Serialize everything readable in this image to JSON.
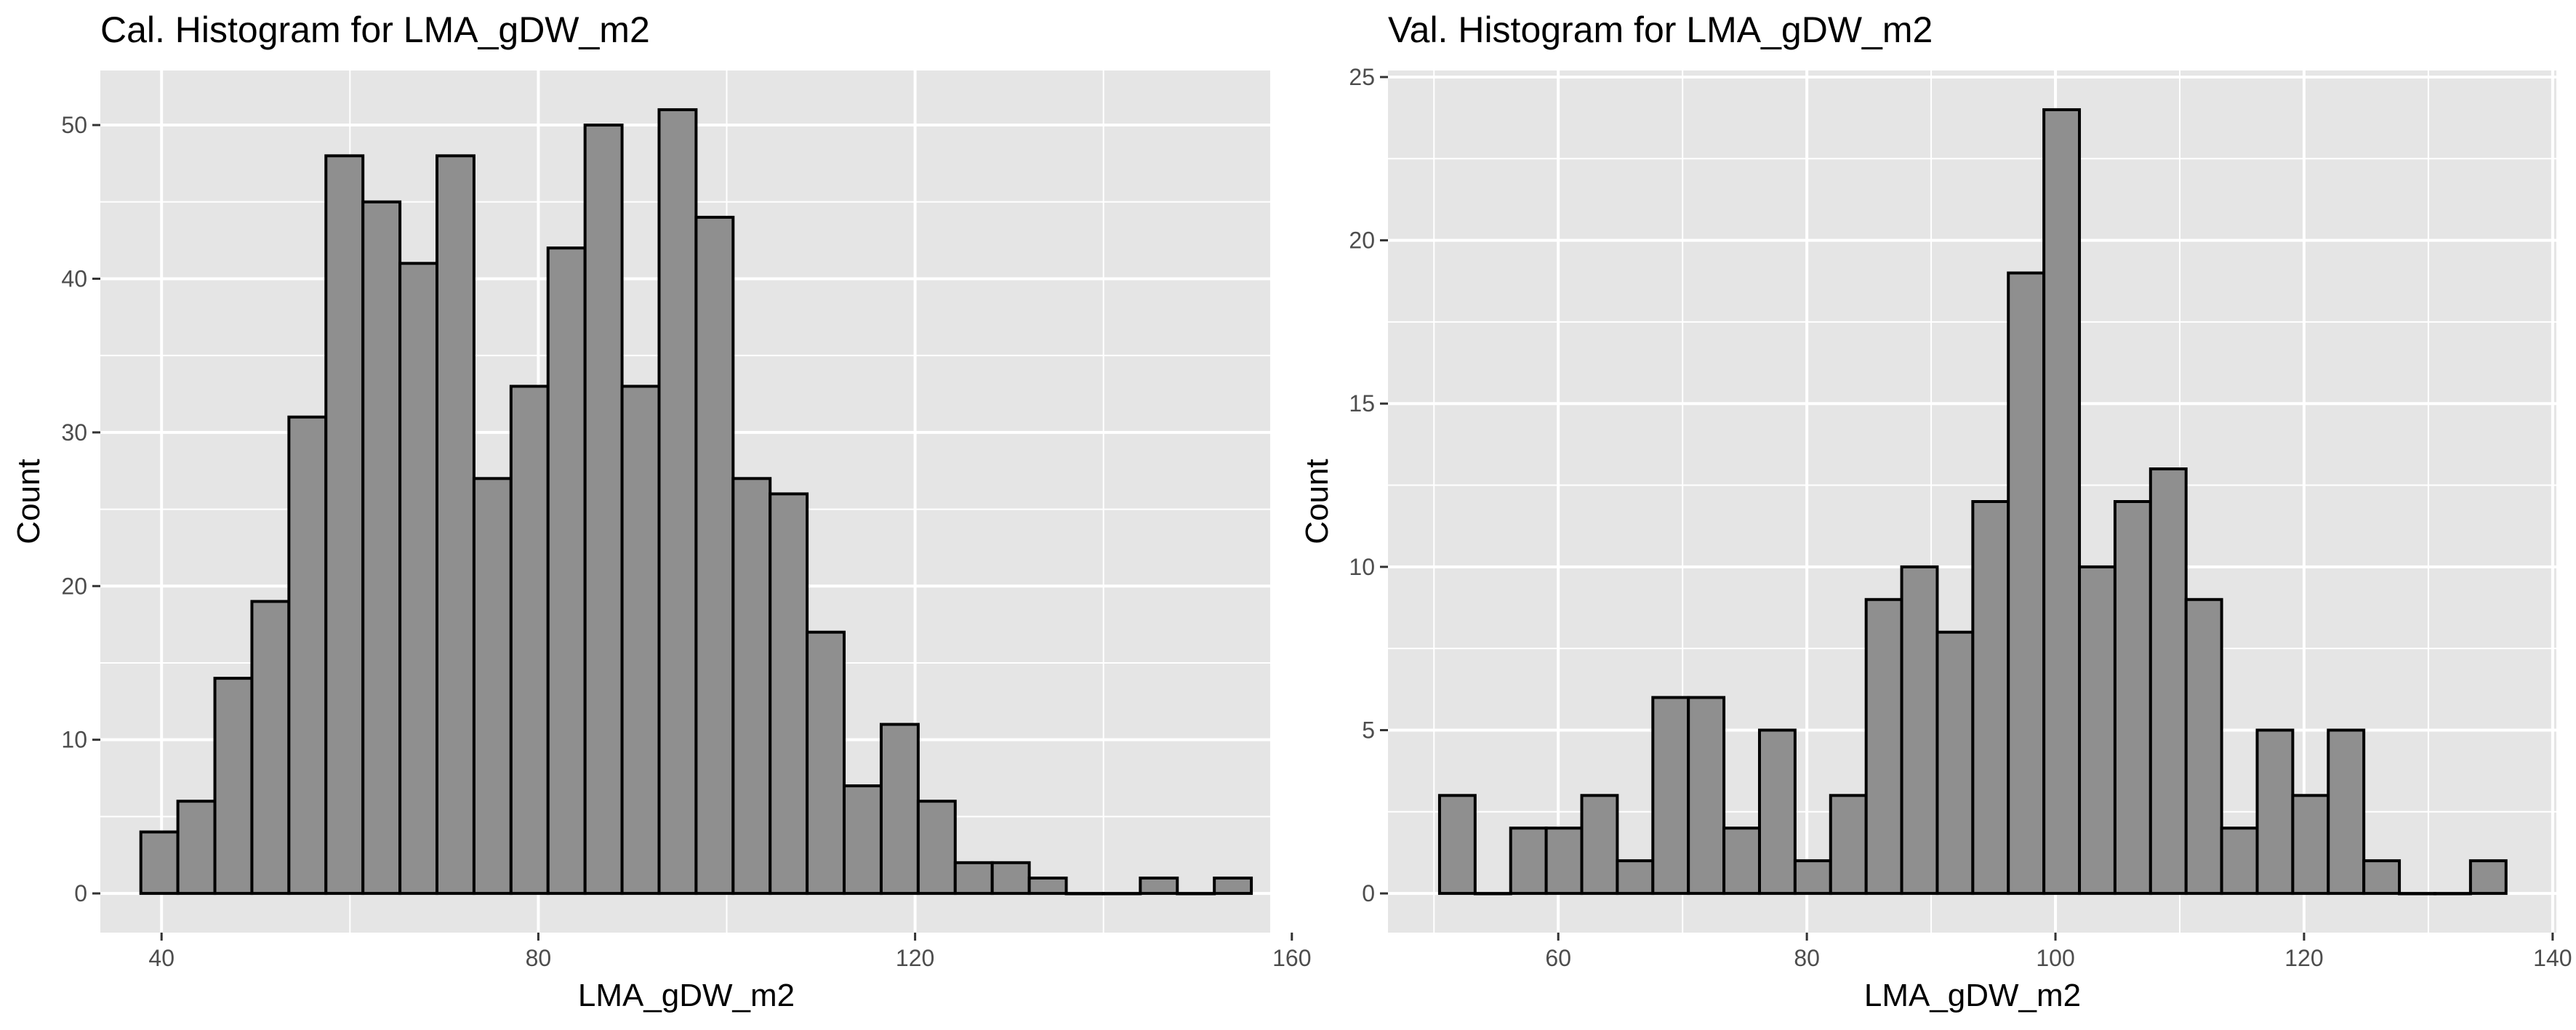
{
  "chart_data": [
    {
      "type": "bar",
      "title": "Cal. Histogram for LMA_gDW_m2",
      "xlabel": "LMA_gDW_m2",
      "ylabel": "Count",
      "xlim": [
        33.5,
        157.7
      ],
      "ylim": [
        -2.55,
        53.55
      ],
      "xticks": [
        40,
        80,
        120,
        160
      ],
      "yticks": [
        0,
        10,
        20,
        30,
        40,
        50
      ],
      "bin_start": 37.8,
      "bin_width": 3.93,
      "values": [
        4,
        6,
        14,
        19,
        31,
        48,
        45,
        41,
        48,
        27,
        33,
        42,
        50,
        33,
        51,
        44,
        27,
        26,
        17,
        7,
        11,
        6,
        2,
        2,
        1,
        0,
        0,
        1,
        0,
        1
      ],
      "grid": true,
      "colors": {
        "panel": "#e5e5e5",
        "bar_fill": "#8f8f8f",
        "bar_edge": "#000000",
        "grid": "#ffffff"
      }
    },
    {
      "type": "bar",
      "title": "Val. Histogram for LMA_gDW_m2",
      "xlabel": "LMA_gDW_m2",
      "ylabel": "Count",
      "xlim": [
        46.3,
        140.3
      ],
      "ylim": [
        -1.2,
        25.2
      ],
      "xticks": [
        60,
        80,
        100,
        120,
        140
      ],
      "yticks": [
        0,
        5,
        10,
        15,
        20,
        25
      ],
      "bin_start": 50.45,
      "bin_width": 2.86,
      "values": [
        3,
        0,
        2,
        2,
        3,
        1,
        6,
        6,
        2,
        5,
        1,
        3,
        9,
        10,
        8,
        12,
        19,
        24,
        10,
        12,
        13,
        9,
        2,
        5,
        3,
        5,
        1,
        0,
        0,
        1
      ],
      "grid": true,
      "colors": {
        "panel": "#e5e5e5",
        "bar_fill": "#8f8f8f",
        "bar_edge": "#000000",
        "grid": "#ffffff"
      }
    }
  ]
}
